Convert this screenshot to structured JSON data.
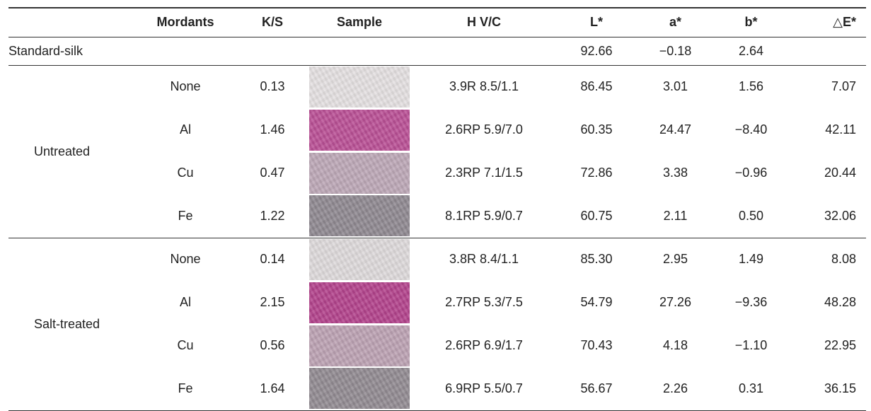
{
  "header": {
    "mordants": "Mordants",
    "ks": "K/S",
    "sample": "Sample",
    "hvc": "H V/C",
    "l": "L*",
    "a": "a*",
    "b": "b*",
    "de": "△E*"
  },
  "standard": {
    "label": "Standard-silk",
    "l": "92.66",
    "a": "−0.18",
    "b": "2.64"
  },
  "groups": [
    {
      "label": "Untreated",
      "rows": [
        {
          "mordant": "None",
          "ks": "0.13",
          "swatch": "#e3dfe0",
          "hvc": "3.9R 8.5/1.1",
          "l": "86.45",
          "a": "3.01",
          "b": "1.56",
          "de": "7.07"
        },
        {
          "mordant": "Al",
          "ks": "1.46",
          "swatch": "#b94f95",
          "hvc": "2.6RP 5.9/7.0",
          "l": "60.35",
          "a": "24.47",
          "b": "−8.40",
          "de": "42.11"
        },
        {
          "mordant": "Cu",
          "ks": "0.47",
          "swatch": "#bca7b6",
          "hvc": "2.3RP 7.1/1.5",
          "l": "72.86",
          "a": "3.38",
          "b": "−0.96",
          "de": "20.44"
        },
        {
          "mordant": "Fe",
          "ks": "1.22",
          "swatch": "#8e8890",
          "hvc": "8.1RP 5.9/0.7",
          "l": "60.75",
          "a": "2.11",
          "b": "0.50",
          "de": "32.06"
        }
      ]
    },
    {
      "label": "Salt-treated",
      "rows": [
        {
          "mordant": "None",
          "ks": "0.14",
          "swatch": "#ddd9da",
          "hvc": "3.8R 8.4/1.1",
          "l": "85.30",
          "a": "2.95",
          "b": "1.49",
          "de": "8.08"
        },
        {
          "mordant": "Al",
          "ks": "2.15",
          "swatch": "#b2428b",
          "hvc": "2.7RP 5.3/7.5",
          "l": "54.79",
          "a": "27.26",
          "b": "−9.36",
          "de": "48.28"
        },
        {
          "mordant": "Cu",
          "ks": "0.56",
          "swatch": "#bba1b2",
          "hvc": "2.6RP 6.9/1.7",
          "l": "70.43",
          "a": "4.18",
          "b": "−1.10",
          "de": "22.95"
        },
        {
          "mordant": "Fe",
          "ks": "1.64",
          "swatch": "#918a91",
          "hvc": "6.9RP 5.5/0.7",
          "l": "56.67",
          "a": "2.26",
          "b": "0.31",
          "de": "36.15"
        }
      ]
    }
  ]
}
